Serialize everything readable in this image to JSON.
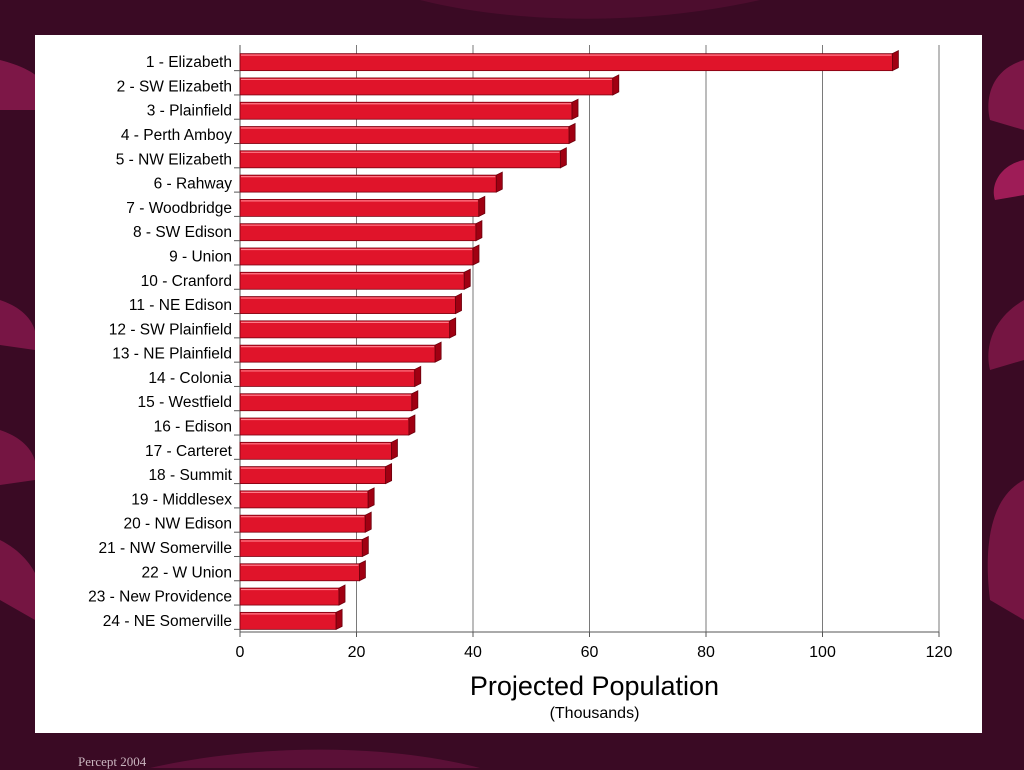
{
  "slide": {
    "footer": "Percept 2004",
    "colors": {
      "background": "#3a0a24",
      "swirl": "#8e1a50",
      "panel": "#ffffff"
    }
  },
  "chart_data": {
    "type": "bar",
    "orientation": "horizontal",
    "categories": [
      "1 - Elizabeth",
      "2 - SW Elizabeth",
      "3 - Plainfield",
      "4 - Perth Amboy",
      "5 - NW Elizabeth",
      "6 - Rahway",
      "7 - Woodbridge",
      "8 - SW Edison",
      "9 - Union",
      "10 - Cranford",
      "11 - NE Edison",
      "12 - SW Plainfield",
      "13 - NE Plainfield",
      "14 - Colonia",
      "15 - Westfield",
      "16 - Edison",
      "17 - Carteret",
      "18 - Summit",
      "19 - Middlesex",
      "20 - NW Edison",
      "21 - NW Somerville",
      "22 - W Union",
      "23 - New Providence",
      "24 - NE Somerville"
    ],
    "values": [
      112,
      64,
      57,
      56.5,
      55,
      44,
      41,
      40.5,
      40,
      38.5,
      37,
      36,
      33.5,
      30,
      29.5,
      29,
      26,
      25,
      22,
      21.5,
      21,
      20.5,
      17,
      16.5
    ],
    "xlim": [
      0,
      120
    ],
    "xticks": [
      "0",
      "20",
      "40",
      "60",
      "80",
      "100",
      "120"
    ],
    "xlabel": "Projected Population",
    "xlabel_sub": "(Thousands)",
    "grid": "vertical",
    "bar_color": "#e0142a",
    "bar_side_color": "#a00012"
  }
}
